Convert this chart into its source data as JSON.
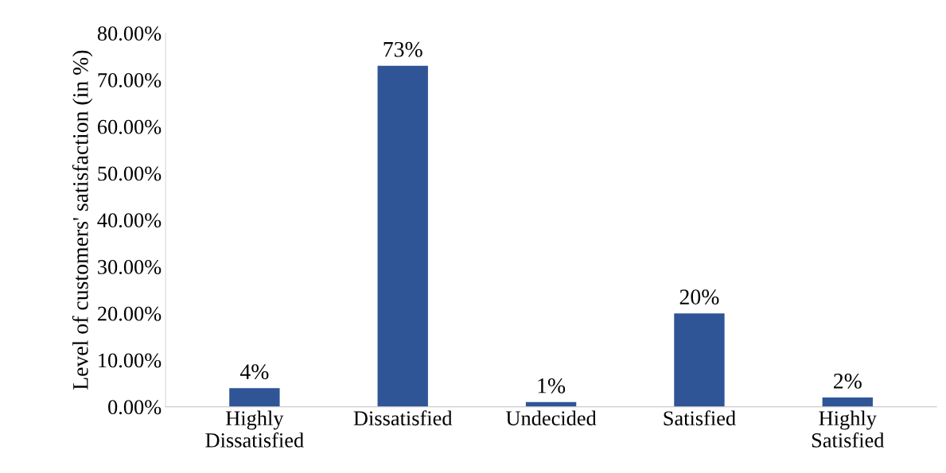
{
  "chart_data": {
    "type": "bar",
    "ylabel": "Level of customers' satisfaction (in %)",
    "categories": [
      "Highly\nDissatisfied",
      "Dissatisfied",
      "Undecided",
      "Satisfied",
      "Highly\nSatisfied"
    ],
    "values": [
      4,
      73,
      1,
      20,
      2
    ],
    "value_labels": [
      "4%",
      "73%",
      "1%",
      "20%",
      "2%"
    ],
    "color": "#2f5597",
    "ylim": [
      0,
      80
    ],
    "yticks": [
      {
        "value": 0,
        "label": "0.00%"
      },
      {
        "value": 10,
        "label": "10.00%"
      },
      {
        "value": 20,
        "label": "20.00%"
      },
      {
        "value": 30,
        "label": "30.00%"
      },
      {
        "value": 40,
        "label": "40.00%"
      },
      {
        "value": 50,
        "label": "50.00%"
      },
      {
        "value": 60,
        "label": "60.00%"
      },
      {
        "value": 70,
        "label": "70.00%"
      },
      {
        "value": 80,
        "label": "80.00%"
      }
    ],
    "grid": false,
    "legend": false
  }
}
